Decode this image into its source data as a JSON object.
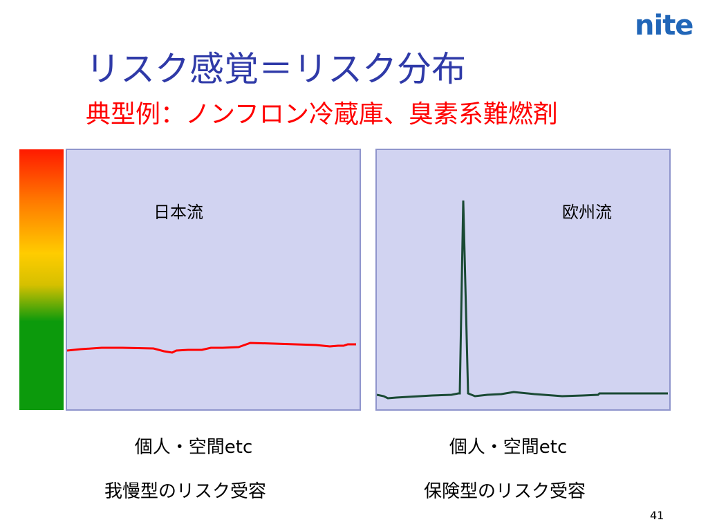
{
  "slide": {
    "logo": "nite",
    "title": "リスク感覚＝リスク分布",
    "subtitle": "典型例：ノンフロン冷蔵庫、臭素系難燃剤",
    "page_number": "41"
  },
  "colors": {
    "title": "#2f3aa8",
    "subtitle": "#ff0000",
    "logo": "#2166b8",
    "panel_fill": "#d1d3f1",
    "japan_line": "#ff0000",
    "europe_line": "#1a4a34"
  },
  "panels": [
    {
      "label": "日本流",
      "caption_line1": "個人・空間etc",
      "caption_line2": "我慢型のリスク受容"
    },
    {
      "label": "欧州流",
      "caption_line1": "個人・空間etc",
      "caption_line2": "保険型のリスク受容"
    }
  ]
}
